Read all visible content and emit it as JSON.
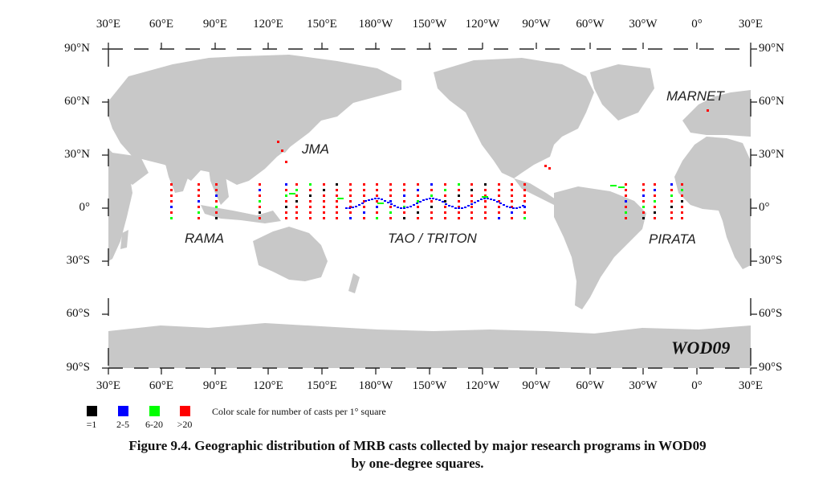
{
  "map": {
    "lon_labels": [
      "30°E",
      "60°E",
      "90°E",
      "120°E",
      "150°E",
      "180°W",
      "150°W",
      "120°W",
      "90°W",
      "60°W",
      "30°W",
      "0°",
      "30°E"
    ],
    "lat_labels": [
      "90°N",
      "60°N",
      "30°N",
      "0°",
      "30°S",
      "60°S",
      "90°S"
    ],
    "land_color": "#c8c8c8",
    "ocean_color": "#ffffff",
    "projection": "cylindrical, Pacific-centred (30°E to 30°E)",
    "programs": [
      {
        "name": "JMA"
      },
      {
        "name": "MARNET"
      },
      {
        "name": "RAMA"
      },
      {
        "name": "TAO / TRITON"
      },
      {
        "name": "PIRATA"
      }
    ],
    "dataset_label": "WOD09"
  },
  "legend": {
    "items": [
      {
        "label": "=1",
        "color": "#000000"
      },
      {
        "label": "2-5",
        "color": "#0000ff"
      },
      {
        "label": "6-20",
        "color": "#00ff00"
      },
      {
        "label": ">20",
        "color": "#ff0000"
      }
    ],
    "caption": "Color scale for number of casts per 1° square"
  },
  "caption": {
    "line1": "Figure 9.4. Geographic distribution of MRB casts collected by major research programs in WOD09",
    "line2": "by one-degree squares."
  }
}
